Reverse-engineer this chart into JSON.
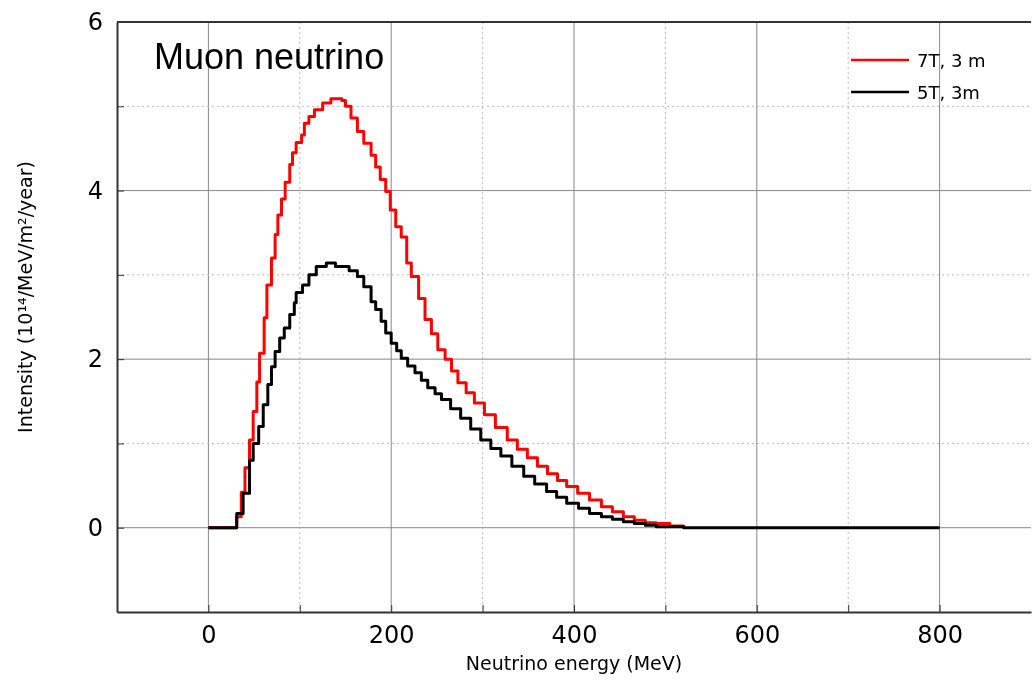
{
  "chart_data": {
    "type": "step",
    "title": "Muon neutrino",
    "xlabel": "Neutrino energy (MeV)",
    "ylabel": "Intensity (10¹⁴/MeV/m²/year)",
    "xlim": [
      -100,
      900
    ],
    "ylim": [
      -1,
      6
    ],
    "xticks": [
      0,
      {
        "value": 100,
        "label": null
      },
      200,
      {
        "value": 300,
        "label": null
      },
      400,
      {
        "value": 500,
        "label": null
      },
      600,
      {
        "value": 700,
        "label": null
      },
      800
    ],
    "yticks": [
      0,
      {
        "value": 1,
        "label": null
      },
      2,
      {
        "value": 3,
        "label": null
      },
      4,
      {
        "value": 5,
        "label": null
      },
      6
    ],
    "grid": true,
    "legend": "top right",
    "line_style": "solid",
    "series": [
      {
        "name": "7T, 3 m",
        "color": "#ff0000",
        "x": [
          0,
          20,
          31,
          36,
          40,
          45,
          49,
          53,
          56,
          61,
          64,
          69,
          73,
          76,
          80,
          84,
          89,
          92,
          96,
          102,
          105,
          110,
          116,
          125,
          134,
          146,
          150,
          156,
          163,
          170,
          178,
          183,
          188,
          194,
          199,
          205,
          211,
          217,
          222,
          230,
          237,
          244,
          251,
          259,
          266,
          273,
          282,
          291,
          302,
          314,
          327,
          338,
          349,
          360,
          371,
          382,
          392,
          404,
          417,
          430,
          442,
          454,
          466,
          478,
          490,
          505,
          520
        ],
        "values": [
          0,
          0,
          0.13,
          0.42,
          0.71,
          1.04,
          1.38,
          1.73,
          2.07,
          2.49,
          2.88,
          3.2,
          3.48,
          3.71,
          3.9,
          4.1,
          4.31,
          4.45,
          4.57,
          4.66,
          4.8,
          4.88,
          4.96,
          5.04,
          5.09,
          5.07,
          5.0,
          4.86,
          4.7,
          4.56,
          4.42,
          4.28,
          4.13,
          3.99,
          3.77,
          3.57,
          3.45,
          3.14,
          2.98,
          2.72,
          2.47,
          2.3,
          2.11,
          2.0,
          1.86,
          1.72,
          1.6,
          1.48,
          1.34,
          1.19,
          1.04,
          0.93,
          0.83,
          0.73,
          0.64,
          0.56,
          0.49,
          0.41,
          0.33,
          0.25,
          0.19,
          0.13,
          0.09,
          0.06,
          0.05,
          0.02,
          0
        ]
      },
      {
        "name": "5T, 3m",
        "color": "#000000",
        "x": [
          0,
          25,
          31,
          38,
          45,
          49,
          55,
          60,
          65,
          69,
          73,
          78,
          83,
          89,
          94,
          96,
          103,
          110,
          118,
          129,
          139,
          154,
          163,
          170,
          178,
          183,
          189,
          194,
          200,
          206,
          211,
          218,
          226,
          233,
          240,
          248,
          255,
          265,
          276,
          287,
          298,
          309,
          320,
          332,
          345,
          357,
          370,
          381,
          392,
          405,
          417,
          430,
          442,
          454,
          466,
          478,
          490,
          520,
          800
        ],
        "values": [
          0,
          0,
          0.17,
          0.41,
          0.8,
          1.0,
          1.2,
          1.46,
          1.7,
          1.91,
          2.09,
          2.25,
          2.37,
          2.53,
          2.67,
          2.79,
          2.88,
          3.0,
          3.1,
          3.14,
          3.1,
          3.05,
          2.98,
          2.86,
          2.68,
          2.59,
          2.45,
          2.31,
          2.19,
          2.1,
          2.01,
          1.92,
          1.84,
          1.75,
          1.66,
          1.59,
          1.52,
          1.41,
          1.3,
          1.17,
          1.04,
          0.94,
          0.85,
          0.73,
          0.61,
          0.52,
          0.43,
          0.36,
          0.29,
          0.23,
          0.17,
          0.13,
          0.1,
          0.07,
          0.05,
          0.03,
          0.01,
          0,
          0
        ]
      }
    ]
  }
}
